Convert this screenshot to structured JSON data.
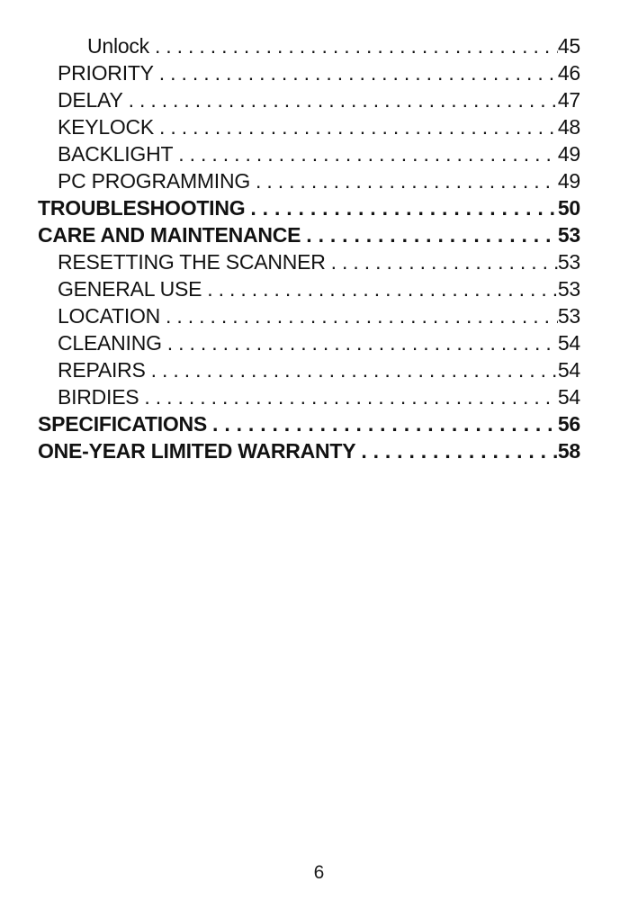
{
  "document": {
    "kind": "table-of-contents-page",
    "footer_page_number": "6",
    "text_color": "#121212",
    "background_color": "#ffffff"
  },
  "toc": {
    "entries": [
      {
        "label": "Unlock",
        "page": "45",
        "level": 2,
        "emphasis": "regular"
      },
      {
        "label": "PRIORITY",
        "page": "46",
        "level": 1,
        "emphasis": "regular"
      },
      {
        "label": "DELAY",
        "page": "47",
        "level": 1,
        "emphasis": "regular"
      },
      {
        "label": "KEYLOCK",
        "page": "48",
        "level": 1,
        "emphasis": "regular"
      },
      {
        "label": "BACKLIGHT",
        "page": "49",
        "level": 1,
        "emphasis": "regular"
      },
      {
        "label": "PC PROGRAMMING",
        "page": "49",
        "level": 1,
        "emphasis": "regular"
      },
      {
        "label": "TROUBLESHOOTING",
        "page": "50",
        "level": 0,
        "emphasis": "bold"
      },
      {
        "label": "CARE AND MAINTENANCE",
        "page": "53",
        "level": 0,
        "emphasis": "bold"
      },
      {
        "label": "RESETTING THE SCANNER",
        "page": "53",
        "level": 1,
        "emphasis": "regular"
      },
      {
        "label": "GENERAL USE",
        "page": "53",
        "level": 1,
        "emphasis": "regular"
      },
      {
        "label": "LOCATION",
        "page": "53",
        "level": 1,
        "emphasis": "regular"
      },
      {
        "label": "CLEANING",
        "page": "54",
        "level": 1,
        "emphasis": "regular"
      },
      {
        "label": "REPAIRS",
        "page": "54",
        "level": 1,
        "emphasis": "regular"
      },
      {
        "label": "BIRDIES",
        "page": "54",
        "level": 1,
        "emphasis": "regular"
      },
      {
        "label": "SPECIFICATIONS",
        "page": "56",
        "level": 0,
        "emphasis": "bold"
      },
      {
        "label": "ONE-YEAR LIMITED WARRANTY",
        "page": "58",
        "level": 0,
        "emphasis": "bold"
      }
    ]
  }
}
